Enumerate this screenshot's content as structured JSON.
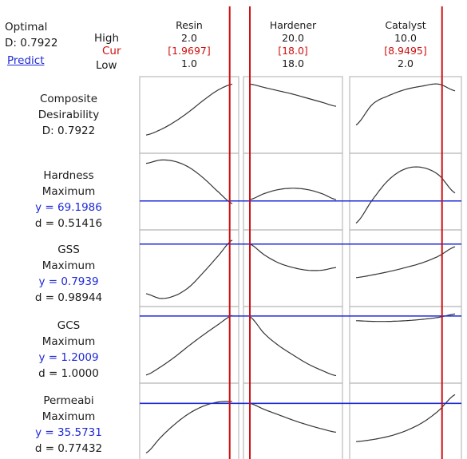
{
  "header": {
    "optimal_label": "Optimal",
    "d_label": "D: 0.7922",
    "predict_label": "Predict",
    "high_label": "High",
    "cur_label": "Cur",
    "low_label": "Low"
  },
  "colors": {
    "current_line": "#d01010",
    "response_line": "#1f2ad8",
    "curve": "#333333",
    "frame": "#222222",
    "grid": "#bbbbbb"
  },
  "chart_data": {
    "type": "line",
    "factors": [
      {
        "name": "Resin",
        "high": "2.0",
        "cur": "[1.9697]",
        "low": "1.0",
        "min": 1.0,
        "max": 2.0,
        "current": 1.9697
      },
      {
        "name": "Hardener",
        "high": "20.0",
        "cur": "[18.0]",
        "low": "18.0",
        "min": 18.0,
        "max": 20.0,
        "current": 18.0
      },
      {
        "name": "Catalyst",
        "high": "10.0",
        "cur": "[8.9495]",
        "low": "2.0",
        "min": 2.0,
        "max": 10.0,
        "current": 8.9495
      }
    ],
    "responses": [
      {
        "title": "Composite",
        "line2": "Desirability",
        "line3": "D: 0.7922",
        "line4": "",
        "level": null,
        "curves": [
          [
            0.2,
            0.28,
            0.4,
            0.55,
            0.72,
            0.87,
            0.96
          ],
          [
            0.96,
            0.91,
            0.86,
            0.81,
            0.75,
            0.69,
            0.63
          ],
          [
            0.35,
            0.66,
            0.79,
            0.88,
            0.93,
            0.96,
            0.86
          ]
        ]
      },
      {
        "title": "Hardness",
        "line2": "Maximum",
        "line3": "y = 69.1986",
        "line4": "d = 0.51416",
        "level": 0.36,
        "curves": [
          [
            0.92,
            0.97,
            0.95,
            0.86,
            0.7,
            0.5,
            0.32
          ],
          [
            0.38,
            0.47,
            0.53,
            0.55,
            0.53,
            0.47,
            0.38
          ],
          [
            0.03,
            0.38,
            0.68,
            0.84,
            0.86,
            0.75,
            0.48
          ]
        ]
      },
      {
        "title": "GSS",
        "line2": "Maximum",
        "line3": "y = 0.7939",
        "line4": "d = 0.98944",
        "level": 0.86,
        "curves": [
          [
            0.12,
            0.05,
            0.09,
            0.22,
            0.44,
            0.68,
            0.92
          ],
          [
            0.86,
            0.7,
            0.58,
            0.51,
            0.47,
            0.47,
            0.51
          ],
          [
            0.36,
            0.4,
            0.45,
            0.51,
            0.58,
            0.68,
            0.82
          ]
        ]
      },
      {
        "title": "GCS",
        "line2": "Maximum",
        "line3": "y = 1.2009",
        "line4": "d = 1.0000",
        "level": 0.93,
        "curves": [
          [
            0.05,
            0.17,
            0.32,
            0.49,
            0.65,
            0.8,
            0.94
          ],
          [
            0.92,
            0.67,
            0.49,
            0.35,
            0.22,
            0.12,
            0.04
          ],
          [
            0.86,
            0.85,
            0.85,
            0.86,
            0.88,
            0.91,
            0.96
          ]
        ]
      },
      {
        "title": "Permeabi",
        "line2": "Maximum",
        "line3": "y = 35.5731",
        "line4": "d = 0.77432",
        "level": 0.77,
        "curves": [
          [
            0.03,
            0.26,
            0.46,
            0.62,
            0.73,
            0.79,
            0.8
          ],
          [
            0.77,
            0.68,
            0.6,
            0.52,
            0.45,
            0.39,
            0.34
          ],
          [
            0.2,
            0.23,
            0.28,
            0.36,
            0.48,
            0.66,
            0.9
          ]
        ]
      }
    ]
  }
}
